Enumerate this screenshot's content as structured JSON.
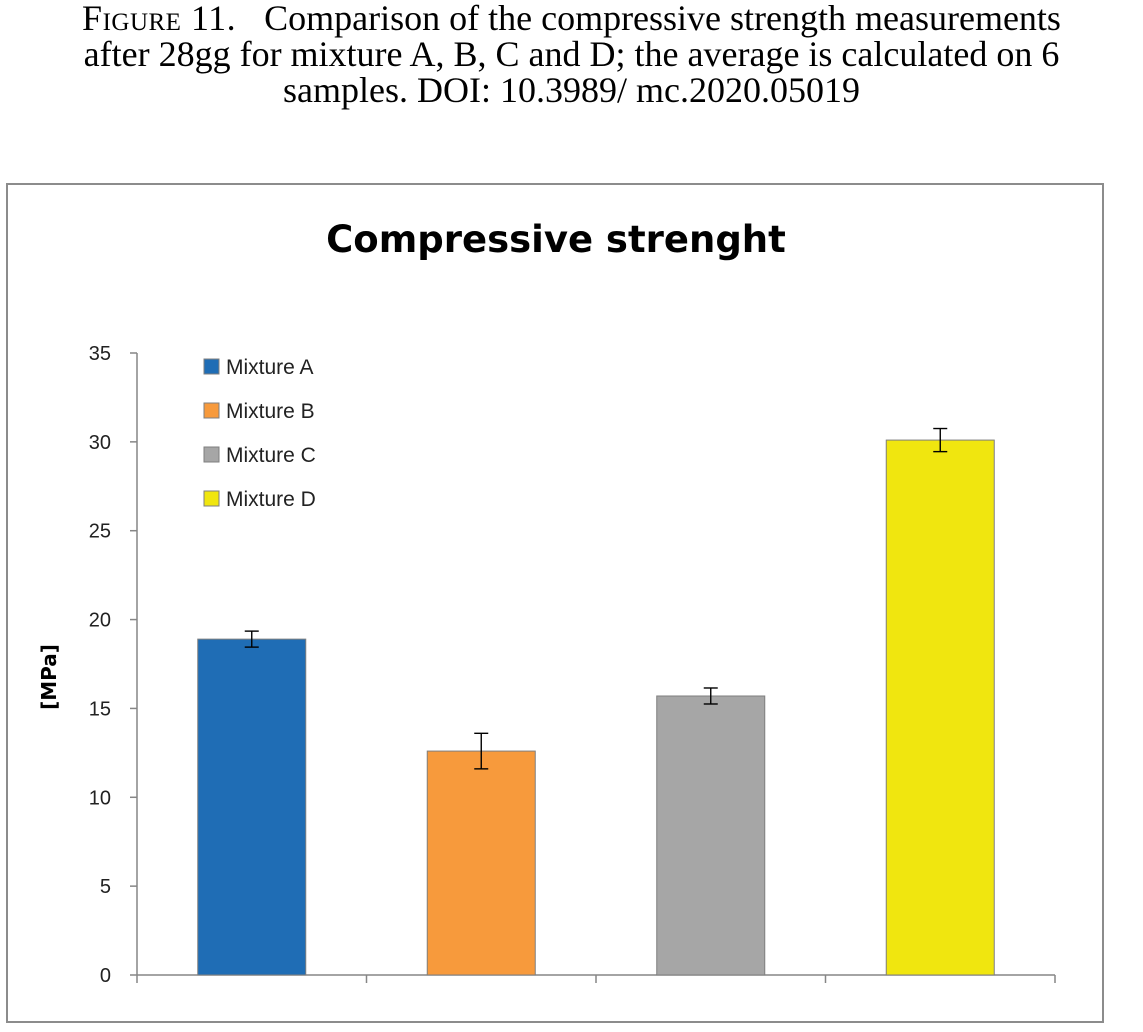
{
  "caption": {
    "label": "Figure 11.",
    "text": "Comparison of the compressive strength measurements after 28gg for mixture A, B, C and D; the average is calculated on 6 samples. DOI: 10.3989/ mc.2020.05019"
  },
  "chart_data": {
    "type": "bar",
    "title": "Compressive strenght",
    "xlabel": "",
    "ylabel": "[MPa]",
    "ylim": [
      0,
      35
    ],
    "yticks": [
      0,
      5,
      10,
      15,
      20,
      25,
      30,
      35
    ],
    "grid": false,
    "legend_position": "top-left",
    "series": [
      {
        "name": "Mixture A",
        "value": 18.9,
        "error": 0.45,
        "color": "#1f6db5"
      },
      {
        "name": "Mixture B",
        "value": 12.6,
        "error": 1.0,
        "color": "#f79a3c"
      },
      {
        "name": "Mixture C",
        "value": 15.7,
        "error": 0.45,
        "color": "#a6a6a6"
      },
      {
        "name": "Mixture D",
        "value": 30.1,
        "error": 0.65,
        "color": "#f0e60f"
      }
    ]
  }
}
